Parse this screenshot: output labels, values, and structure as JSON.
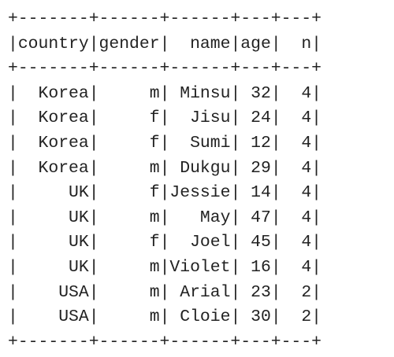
{
  "table": {
    "border_line": "+-------+------+------+---+---+",
    "columns": [
      {
        "key": "country",
        "header": "country",
        "width": 7,
        "align": "right"
      },
      {
        "key": "gender",
        "header": "gender",
        "width": 6,
        "align": "right"
      },
      {
        "key": "name",
        "header": "name",
        "width": 6,
        "align": "right"
      },
      {
        "key": "age",
        "header": "age",
        "width": 3,
        "align": "right"
      },
      {
        "key": "n",
        "header": "n",
        "width": 3,
        "align": "right"
      }
    ],
    "rows": [
      {
        "country": "Korea",
        "gender": "m",
        "name": "Minsu",
        "age": "32",
        "n": "4"
      },
      {
        "country": "Korea",
        "gender": "f",
        "name": "Jisu",
        "age": "24",
        "n": "4"
      },
      {
        "country": "Korea",
        "gender": "f",
        "name": "Sumi",
        "age": "12",
        "n": "4"
      },
      {
        "country": "Korea",
        "gender": "m",
        "name": "Dukgu",
        "age": "29",
        "n": "4"
      },
      {
        "country": "UK",
        "gender": "f",
        "name": "Jessie",
        "age": "14",
        "n": "4"
      },
      {
        "country": "UK",
        "gender": "m",
        "name": "May",
        "age": "47",
        "n": "4"
      },
      {
        "country": "UK",
        "gender": "f",
        "name": "Joel",
        "age": "45",
        "n": "4"
      },
      {
        "country": "UK",
        "gender": "m",
        "name": "Violet",
        "age": "16",
        "n": "4"
      },
      {
        "country": "USA",
        "gender": "m",
        "name": "Arial",
        "age": "23",
        "n": "2"
      },
      {
        "country": "USA",
        "gender": "m",
        "name": "Cloie",
        "age": "30",
        "n": "2"
      }
    ]
  }
}
